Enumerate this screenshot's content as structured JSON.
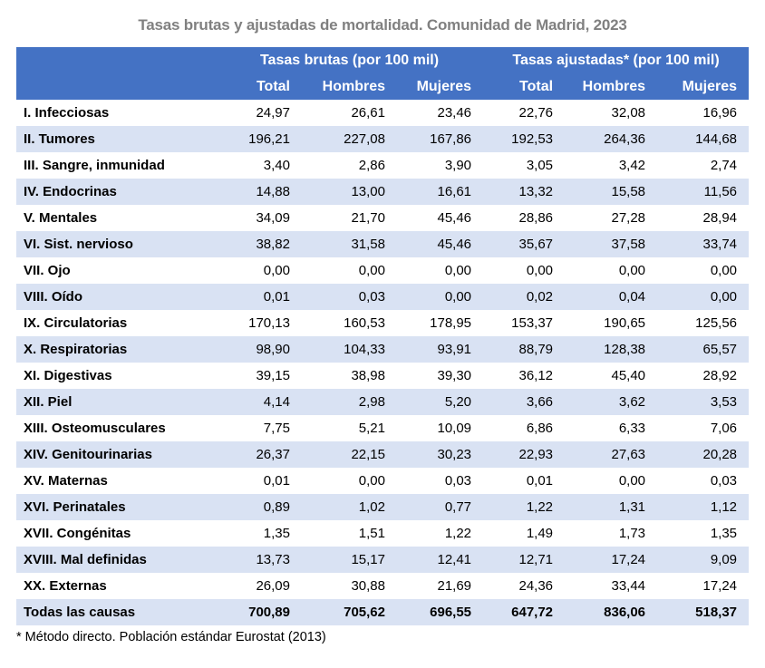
{
  "title": "Tasas brutas y ajustadas de mortalidad. Comunidad de Madrid, 2023",
  "footnote": "* Método directo. Población estándar Eurostat (2013)",
  "colors": {
    "header_bg": "#4472C4",
    "header_text": "#FFFFFF",
    "band_bg": "#D9E2F3",
    "title_text": "#808080"
  },
  "chart_data": {
    "type": "table",
    "title": "Tasas brutas y ajustadas de mortalidad. Comunidad de Madrid, 2023",
    "column_groups": [
      "Tasas brutas (por 100 mil)",
      "Tasas ajustadas* (por 100 mil)"
    ],
    "sub_headers": [
      "Total",
      "Hombres",
      "Mujeres",
      "Total",
      "Hombres",
      "Mujeres"
    ],
    "decimal_separator": ",",
    "unit": "per 100,000",
    "rows": [
      {
        "label": "I. Infecciosas",
        "values": [
          "24,97",
          "26,61",
          "23,46",
          "22,76",
          "32,08",
          "16,96"
        ]
      },
      {
        "label": "II. Tumores",
        "values": [
          "196,21",
          "227,08",
          "167,86",
          "192,53",
          "264,36",
          "144,68"
        ]
      },
      {
        "label": "III. Sangre, inmunidad",
        "values": [
          "3,40",
          "2,86",
          "3,90",
          "3,05",
          "3,42",
          "2,74"
        ]
      },
      {
        "label": "IV. Endocrinas",
        "values": [
          "14,88",
          "13,00",
          "16,61",
          "13,32",
          "15,58",
          "11,56"
        ]
      },
      {
        "label": "V. Mentales",
        "values": [
          "34,09",
          "21,70",
          "45,46",
          "28,86",
          "27,28",
          "28,94"
        ]
      },
      {
        "label": "VI. Sist. nervioso",
        "values": [
          "38,82",
          "31,58",
          "45,46",
          "35,67",
          "37,58",
          "33,74"
        ]
      },
      {
        "label": "VII. Ojo",
        "values": [
          "0,00",
          "0,00",
          "0,00",
          "0,00",
          "0,00",
          "0,00"
        ]
      },
      {
        "label": "VIII. Oído",
        "values": [
          "0,01",
          "0,03",
          "0,00",
          "0,02",
          "0,04",
          "0,00"
        ]
      },
      {
        "label": "IX. Circulatorias",
        "values": [
          "170,13",
          "160,53",
          "178,95",
          "153,37",
          "190,65",
          "125,56"
        ]
      },
      {
        "label": "X. Respiratorias",
        "values": [
          "98,90",
          "104,33",
          "93,91",
          "88,79",
          "128,38",
          "65,57"
        ]
      },
      {
        "label": "XI. Digestivas",
        "values": [
          "39,15",
          "38,98",
          "39,30",
          "36,12",
          "45,40",
          "28,92"
        ]
      },
      {
        "label": "XII. Piel",
        "values": [
          "4,14",
          "2,98",
          "5,20",
          "3,66",
          "3,62",
          "3,53"
        ]
      },
      {
        "label": "XIII. Osteomusculares",
        "values": [
          "7,75",
          "5,21",
          "10,09",
          "6,86",
          "6,33",
          "7,06"
        ]
      },
      {
        "label": "XIV. Genitourinarias",
        "values": [
          "26,37",
          "22,15",
          "30,23",
          "22,93",
          "27,63",
          "20,28"
        ]
      },
      {
        "label": "XV. Maternas",
        "values": [
          "0,01",
          "0,00",
          "0,03",
          "0,01",
          "0,00",
          "0,03"
        ]
      },
      {
        "label": "XVI. Perinatales",
        "values": [
          "0,89",
          "1,02",
          "0,77",
          "1,22",
          "1,31",
          "1,12"
        ]
      },
      {
        "label": "XVII. Congénitas",
        "values": [
          "1,35",
          "1,51",
          "1,22",
          "1,49",
          "1,73",
          "1,35"
        ]
      },
      {
        "label": "XVIII. Mal definidas",
        "values": [
          "13,73",
          "15,17",
          "12,41",
          "12,71",
          "17,24",
          "9,09"
        ]
      },
      {
        "label": "XX. Externas",
        "values": [
          "26,09",
          "30,88",
          "21,69",
          "24,36",
          "33,44",
          "17,24"
        ]
      },
      {
        "label": "Todas las causas",
        "values": [
          "700,89",
          "705,62",
          "696,55",
          "647,72",
          "836,06",
          "518,37"
        ],
        "is_total": true
      }
    ],
    "footnote": "* Método directo. Población estándar Eurostat (2013)",
    "layout_hints": {
      "banded_rows": true,
      "header_rows": 2,
      "total_row_bold": true
    }
  }
}
